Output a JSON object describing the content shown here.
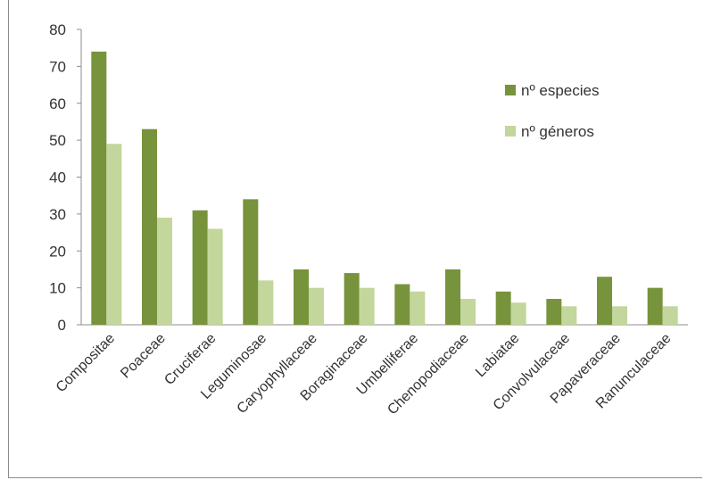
{
  "chart_data": {
    "type": "bar",
    "categories": [
      "Compositae",
      "Poaceae",
      "Cruciferae",
      "Leguminosae",
      "Caryophyllaceae",
      "Boraginaceae",
      "Umbelliferae",
      "Chenopodiaceae",
      "Labiatae",
      "Convolvulaceae",
      "Papaveraceae",
      "Ranunculaceae"
    ],
    "series": [
      {
        "name": "nº especies",
        "color": "#77933c",
        "values": [
          74,
          53,
          31,
          34,
          15,
          14,
          11,
          15,
          9,
          7,
          13,
          10
        ]
      },
      {
        "name": "nº géneros",
        "color": "#c3d69b",
        "values": [
          49,
          29,
          26,
          12,
          10,
          10,
          9,
          7,
          6,
          5,
          5,
          5
        ]
      }
    ],
    "ylim": [
      0,
      80
    ],
    "yticks": [
      "0",
      "10",
      "20",
      "30",
      "40",
      "50",
      "60",
      "70",
      "80"
    ],
    "grid": false,
    "legend_position": "top-right"
  }
}
